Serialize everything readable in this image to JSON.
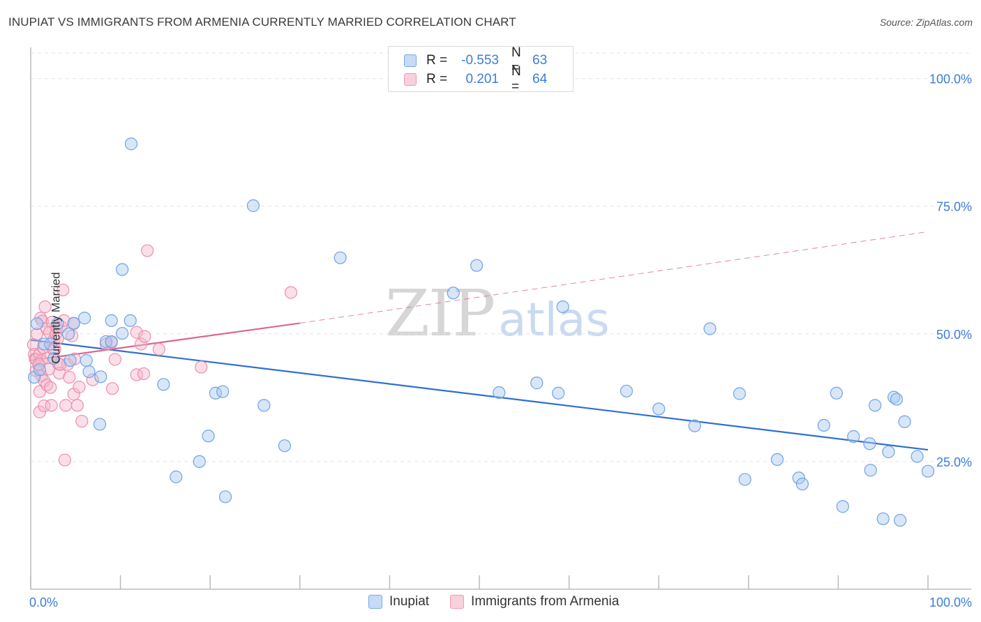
{
  "title": "INUPIAT VS IMMIGRANTS FROM ARMENIA CURRENTLY MARRIED CORRELATION CHART",
  "source": "Source: ZipAtlas.com",
  "watermark": {
    "zip": "ZIP",
    "atlas": "atlas"
  },
  "legend": {
    "rows": [
      {
        "r_label": "R =",
        "r_value": "-0.553",
        "n_label": "N =",
        "n_value": "63",
        "color": "#a9c8f0"
      },
      {
        "r_label": "R =",
        "r_value": "0.201",
        "n_label": "N =",
        "n_value": "64",
        "color": "#f5b8cb"
      }
    ]
  },
  "bottom_legend": [
    {
      "label": "Inupiat",
      "color": "#a9c8f0"
    },
    {
      "label": "Immigrants from Armenia",
      "color": "#f5b8cb"
    }
  ],
  "chart_data": {
    "type": "scatter",
    "title": "INUPIAT VS IMMIGRANTS FROM ARMENIA CURRENTLY MARRIED CORRELATION CHART",
    "xlabel": "",
    "ylabel": "Currently Married",
    "xlim": [
      0,
      100
    ],
    "ylim": [
      0,
      105
    ],
    "x_tick_labels": [
      "0.0%",
      "100.0%"
    ],
    "y_ticks": [
      25,
      50,
      75,
      100
    ],
    "y_tick_labels": [
      "25.0%",
      "50.0%",
      "75.0%",
      "100.0%"
    ],
    "grid": true,
    "series": [
      {
        "name": "Inupiat",
        "color": "#6fa3e6",
        "fill": "#a9c8f0",
        "trend": {
          "x": [
            0,
            100
          ],
          "y": [
            48.8,
            27.3
          ],
          "color": "#2f6fd0",
          "dashed_from": null
        },
        "points": [
          [
            0.4,
            41.5
          ],
          [
            0.7,
            52
          ],
          [
            1.5,
            48
          ],
          [
            2.2,
            48
          ],
          [
            2.6,
            45.2
          ],
          [
            3.0,
            52
          ],
          [
            4.4,
            44.8
          ],
          [
            4.2,
            50
          ],
          [
            4.8,
            52.1
          ],
          [
            6.0,
            53.1
          ],
          [
            6.2,
            44.8
          ],
          [
            6.5,
            42.6
          ],
          [
            7.8,
            41.6
          ],
          [
            7.7,
            32.3
          ],
          [
            8.4,
            48.5
          ],
          [
            9.0,
            48.5
          ],
          [
            9.0,
            52.6
          ],
          [
            10.2,
            50.1
          ],
          [
            10.2,
            62.6
          ],
          [
            11.1,
            52.6
          ],
          [
            11.2,
            87.2
          ],
          [
            14.8,
            40.1
          ],
          [
            16.2,
            22.0
          ],
          [
            18.8,
            25.0
          ],
          [
            19.8,
            30.0
          ],
          [
            20.6,
            38.4
          ],
          [
            21.4,
            38.7
          ],
          [
            21.7,
            18.1
          ],
          [
            24.8,
            75.1
          ],
          [
            26.0,
            36.0
          ],
          [
            28.3,
            28.1
          ],
          [
            34.5,
            64.9
          ],
          [
            47.1,
            58.0
          ],
          [
            49.7,
            63.4
          ],
          [
            52.2,
            38.5
          ],
          [
            56.4,
            40.4
          ],
          [
            59.3,
            55.3
          ],
          [
            58.8,
            38.4
          ],
          [
            66.4,
            38.8
          ],
          [
            70.0,
            35.3
          ],
          [
            74.0,
            32.0
          ],
          [
            75.7,
            51.0
          ],
          [
            79.0,
            38.3
          ],
          [
            79.6,
            21.5
          ],
          [
            83.2,
            25.4
          ],
          [
            85.6,
            21.8
          ],
          [
            86.0,
            20.6
          ],
          [
            88.4,
            32.1
          ],
          [
            89.8,
            38.4
          ],
          [
            90.5,
            16.2
          ],
          [
            91.7,
            29.9
          ],
          [
            93.5,
            28.5
          ],
          [
            93.6,
            23.3
          ],
          [
            94.1,
            36.0
          ],
          [
            95.0,
            13.8
          ],
          [
            95.6,
            26.9
          ],
          [
            96.2,
            37.6
          ],
          [
            96.5,
            37.2
          ],
          [
            96.9,
            13.5
          ],
          [
            97.4,
            32.8
          ],
          [
            98.8,
            26.0
          ],
          [
            100.0,
            23.1
          ],
          [
            1.0,
            43.0
          ]
        ]
      },
      {
        "name": "Immigrants from Armenia",
        "color": "#ec8fab",
        "fill": "#f5b8cb",
        "trend": {
          "x": [
            0,
            30,
            100
          ],
          "y": [
            44.8,
            52.1,
            70.0
          ],
          "color": "#e0648c",
          "dashed_from": 30
        },
        "points": [
          [
            0.3,
            47.9
          ],
          [
            0.4,
            46.0
          ],
          [
            0.5,
            45.1
          ],
          [
            0.6,
            45.0
          ],
          [
            0.6,
            42.8
          ],
          [
            0.7,
            50.0
          ],
          [
            0.9,
            43.9
          ],
          [
            1.0,
            46.0
          ],
          [
            1.0,
            34.7
          ],
          [
            1.0,
            38.7
          ],
          [
            1.1,
            53.1
          ],
          [
            1.2,
            41.8
          ],
          [
            1.2,
            44.8
          ],
          [
            1.3,
            52.5
          ],
          [
            1.5,
            35.9
          ],
          [
            1.5,
            40.8
          ],
          [
            1.6,
            55.3
          ],
          [
            1.8,
            51.0
          ],
          [
            1.8,
            40.0
          ],
          [
            1.9,
            45.3
          ],
          [
            2.0,
            43.1
          ],
          [
            2.1,
            50.3
          ],
          [
            2.2,
            39.5
          ],
          [
            2.3,
            36.0
          ],
          [
            2.4,
            52.3
          ],
          [
            2.6,
            48.9
          ],
          [
            2.7,
            47.0
          ],
          [
            2.8,
            50.0
          ],
          [
            2.9,
            51.3
          ],
          [
            3.0,
            49.1
          ],
          [
            3.1,
            44.1
          ],
          [
            3.2,
            42.3
          ],
          [
            3.4,
            51.4
          ],
          [
            3.6,
            58.6
          ],
          [
            3.7,
            52.6
          ],
          [
            3.8,
            25.3
          ],
          [
            3.9,
            36.0
          ],
          [
            4.1,
            44.0
          ],
          [
            4.3,
            41.5
          ],
          [
            4.6,
            49.6
          ],
          [
            4.8,
            52.0
          ],
          [
            4.8,
            38.2
          ],
          [
            4.9,
            45.1
          ],
          [
            5.2,
            36.0
          ],
          [
            5.4,
            39.6
          ],
          [
            5.7,
            32.9
          ],
          [
            6.9,
            41.0
          ],
          [
            8.4,
            48.0
          ],
          [
            9.0,
            48.3
          ],
          [
            9.1,
            39.3
          ],
          [
            9.4,
            45.0
          ],
          [
            11.8,
            42.0
          ],
          [
            11.8,
            50.3
          ],
          [
            12.3,
            48.0
          ],
          [
            12.6,
            42.2
          ],
          [
            12.7,
            49.5
          ],
          [
            13.0,
            66.3
          ],
          [
            14.3,
            47.0
          ],
          [
            19.0,
            43.5
          ],
          [
            29.0,
            58.1
          ],
          [
            0.9,
            44.1
          ],
          [
            1.4,
            47.3
          ],
          [
            2.5,
            47.0
          ],
          [
            3.3,
            44.0
          ]
        ]
      }
    ]
  }
}
